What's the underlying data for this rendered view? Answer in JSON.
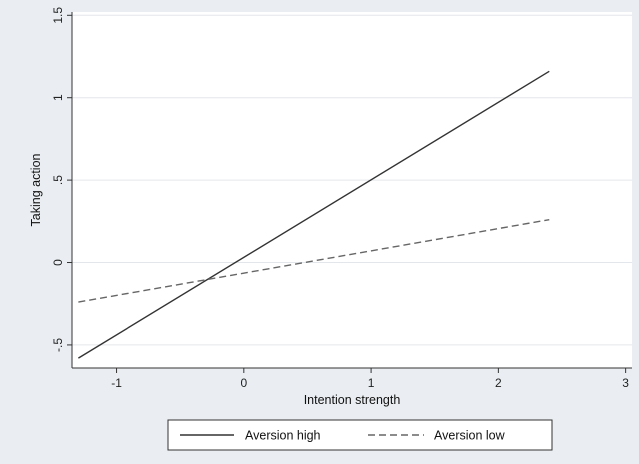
{
  "chart_data": {
    "type": "line",
    "title": "",
    "xlabel": "Intention strength",
    "ylabel": "Taking action",
    "xlim": [
      -1.35,
      3.05
    ],
    "ylim": [
      -0.64,
      1.52
    ],
    "xticks": [
      -1,
      0,
      1,
      2,
      3
    ],
    "xtick_labels": [
      "-1",
      "0",
      "1",
      "2",
      "3"
    ],
    "yticks": [
      -0.5,
      0,
      0.5,
      1,
      1.5
    ],
    "ytick_labels": [
      "-.5",
      "0",
      ".5",
      "1",
      "1.5"
    ],
    "grid": true,
    "legend_position": "bottom",
    "series": [
      {
        "name": "Aversion high",
        "style": "solid",
        "color": "#333333",
        "x": [
          -1.3,
          2.4
        ],
        "y": [
          -0.58,
          1.16
        ]
      },
      {
        "name": "Aversion low",
        "style": "dashed",
        "color": "#666666",
        "x": [
          -1.3,
          2.4
        ],
        "y": [
          -0.24,
          0.26
        ]
      }
    ]
  }
}
